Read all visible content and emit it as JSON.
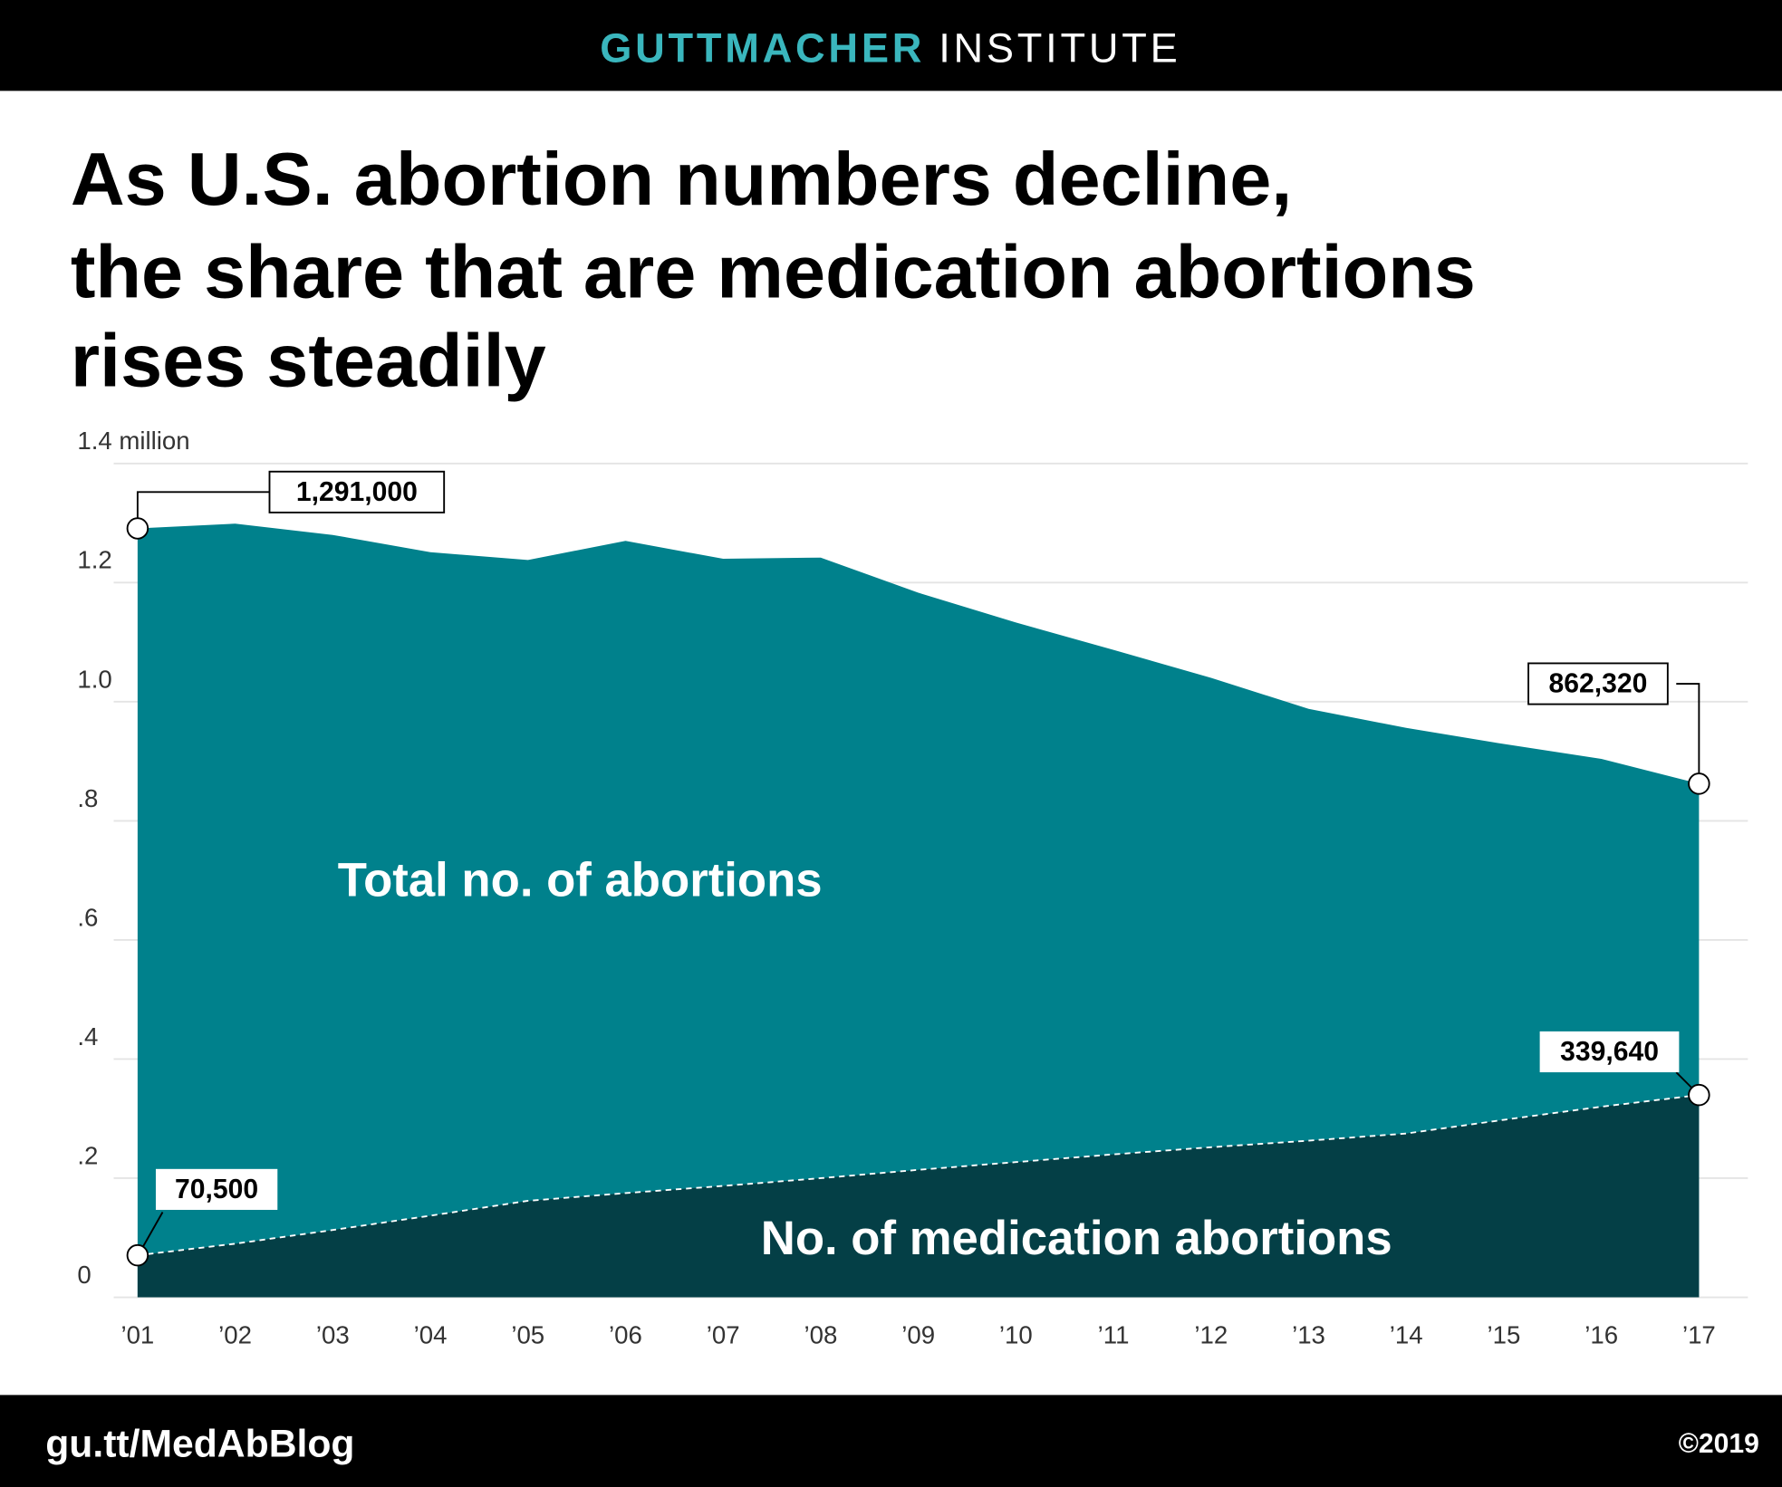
{
  "header": {
    "brand": "GUTTMACHER",
    "brand_suffix": "INSTITUTE"
  },
  "chart_data": {
    "type": "area",
    "title_lines": [
      "As U.S. abortion numbers decline,",
      "the share that are medication abortions",
      "rises steadily"
    ],
    "categories": [
      "’01",
      "’02",
      "’03",
      "’04",
      "’05",
      "’06",
      "’07",
      "’08",
      "’09",
      "’10",
      "’11",
      "’12",
      "’13",
      "’14",
      "’15",
      "’16",
      "’17"
    ],
    "series": [
      {
        "name": "Total no. of abortions",
        "color": "#00818c",
        "values": [
          1291000,
          1299000,
          1280000,
          1251000,
          1238000,
          1270000,
          1240000,
          1242000,
          1183000,
          1133000,
          1087000,
          1040000,
          988000,
          956000,
          929000,
          904000,
          862320
        ],
        "value_labels": [
          "1,291,000",
          null,
          null,
          null,
          null,
          null,
          null,
          null,
          null,
          null,
          null,
          null,
          null,
          null,
          null,
          null,
          "862,320"
        ]
      },
      {
        "name": "No. of medication abortions",
        "color": "#043f46",
        "values": [
          70500,
          90000,
          113000,
          137000,
          162000,
          175000,
          187000,
          200000,
          214000,
          227000,
          240000,
          252000,
          263000,
          275000,
          298000,
          320000,
          339640
        ],
        "value_labels": [
          "70,500",
          null,
          null,
          null,
          null,
          null,
          null,
          null,
          null,
          null,
          null,
          null,
          null,
          null,
          null,
          null,
          "339,640"
        ]
      }
    ],
    "ylim": [
      0,
      1400000
    ],
    "yticks": [
      0,
      {
        "value": 200000,
        "label": ".2"
      },
      {
        "value": 400000,
        "label": ".4"
      },
      {
        "value": 600000,
        "label": ".6"
      },
      {
        "value": 800000,
        "label": ".8"
      },
      {
        "value": 1000000,
        "label": "1.0"
      },
      {
        "value": 1200000,
        "label": "1.2"
      },
      {
        "value": 1400000,
        "label": "1.4 million"
      }
    ],
    "grid": true
  },
  "footer": {
    "link": "gu.tt/MedAbBlog",
    "copyright": "©2019"
  }
}
